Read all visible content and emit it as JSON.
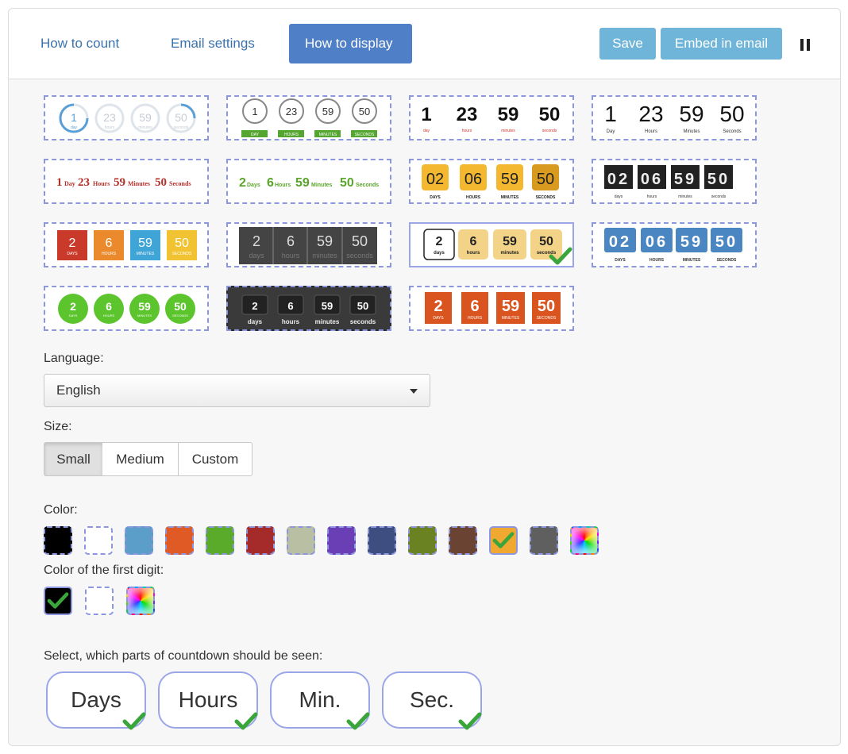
{
  "tabs": [
    {
      "label": "How to count",
      "active": false
    },
    {
      "label": "Email settings",
      "active": false
    },
    {
      "label": "How to display",
      "active": true
    }
  ],
  "toolbar": {
    "save_label": "Save",
    "embed_label": "Embed in email",
    "pause_icon": "pause-icon"
  },
  "styles": {
    "s1": {
      "values": [
        "1",
        "23",
        "59",
        "50"
      ],
      "units": [
        "day",
        "hours",
        "minutes",
        "seconds"
      ]
    },
    "s2": {
      "values": [
        "1",
        "23",
        "59",
        "50"
      ],
      "units": [
        "DAY",
        "HOURS",
        "MINUTES",
        "SECONDS"
      ]
    },
    "s3": {
      "values": [
        "1",
        "23",
        "59",
        "50"
      ],
      "units": [
        "day",
        "hours",
        "minutes",
        "seconds"
      ]
    },
    "s4": {
      "values": [
        "1",
        "23",
        "59",
        "50"
      ],
      "units": [
        "Day",
        "Hours",
        "Minutes",
        "Seconds"
      ]
    },
    "s5": {
      "values": [
        "1",
        "23",
        "59",
        "50"
      ],
      "units": [
        "Day",
        "Hours",
        "Minutes",
        "Seconds"
      ]
    },
    "s6": {
      "values": [
        "2",
        "6",
        "59",
        "50"
      ],
      "units": [
        "Days",
        "Hours",
        "Minutes",
        "Seconds"
      ]
    },
    "s7": {
      "values": [
        "02",
        "06",
        "59",
        "50"
      ],
      "units": [
        "DAYS",
        "HOURS",
        "MINUTES",
        "SECONDS"
      ]
    },
    "s8": {
      "values": [
        "02",
        "06",
        "59",
        "50"
      ],
      "units": [
        "days",
        "hours",
        "minutes",
        "seconds"
      ]
    },
    "s9": {
      "values": [
        "2",
        "6",
        "59",
        "50"
      ],
      "units": [
        "DAYS",
        "HOURS",
        "MINUTES",
        "SECONDS"
      ]
    },
    "s10": {
      "values": [
        "2",
        "6",
        "59",
        "50"
      ],
      "units": [
        "days",
        "hours",
        "minutes",
        "seconds"
      ]
    },
    "s11": {
      "values": [
        "2",
        "6",
        "59",
        "50"
      ],
      "units": [
        "days",
        "hours",
        "minutes",
        "seconds"
      ],
      "selected": true
    },
    "s12": {
      "values": [
        "02",
        "06",
        "59",
        "50"
      ],
      "units": [
        "DAYS",
        "HOURS",
        "MINUTES",
        "SECONDS"
      ]
    },
    "s13": {
      "values": [
        "2",
        "6",
        "59",
        "50"
      ],
      "units": [
        "DAYS",
        "HOURS",
        "MINUTES",
        "SECONDS"
      ]
    },
    "s14": {
      "values": [
        "2",
        "6",
        "59",
        "50"
      ],
      "units": [
        "days",
        "hours",
        "minutes",
        "seconds"
      ]
    },
    "s15": {
      "values": [
        "2",
        "6",
        "59",
        "50"
      ],
      "units": [
        "DAYS",
        "HOURS",
        "MINUTES",
        "SECONDS"
      ]
    }
  },
  "language": {
    "label": "Language:",
    "value": "English"
  },
  "size": {
    "label": "Size:",
    "options": [
      "Small",
      "Medium",
      "Custom"
    ],
    "selected": "Small"
  },
  "color": {
    "label": "Color:",
    "swatches": [
      "#000000",
      "#ffffff",
      "#5b9ec9",
      "#e05a26",
      "#5aab2a",
      "#a52a2a",
      "#b8bfa3",
      "#6a3eb5",
      "#3f4e80",
      "#6a8222",
      "#6b4332",
      "#f0a830",
      "#5f5f5f",
      "rainbow"
    ],
    "selected_index": 11
  },
  "first_digit": {
    "label": "Color of the first digit:",
    "swatches": [
      "#000000",
      "#ffffff",
      "rainbow"
    ],
    "selected_index": 0
  },
  "parts": {
    "label": "Select, which parts of countdown should be seen:",
    "items": [
      "Days",
      "Hours",
      "Min.",
      "Sec."
    ]
  }
}
